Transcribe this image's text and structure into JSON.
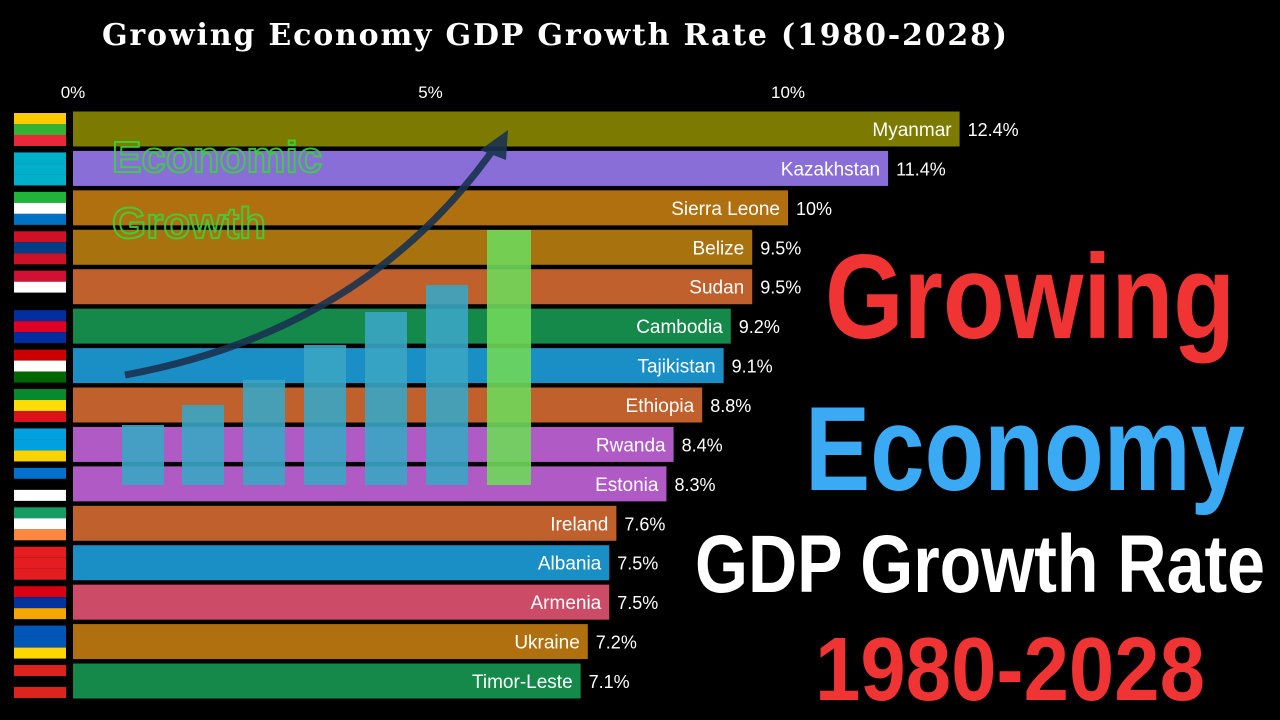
{
  "chart_data": {
    "type": "bar",
    "orientation": "horizontal",
    "title": "Growing Economy GDP Growth Rate (1980-2028)",
    "categories": [
      "Myanmar",
      "Kazakhstan",
      "Sierra Leone",
      "Belize",
      "Sudan",
      "Cambodia",
      "Tajikistan",
      "Ethiopia",
      "Rwanda",
      "Estonia",
      "Ireland",
      "Albania",
      "Armenia",
      "Ukraine",
      "Timor-Leste"
    ],
    "values": [
      12.4,
      11.4,
      10,
      9.5,
      9.5,
      9.2,
      9.1,
      8.8,
      8.4,
      8.3,
      7.6,
      7.5,
      7.5,
      7.2,
      7.1
    ],
    "value_labels": [
      "12.4%",
      "11.4%",
      "10%",
      "9.5%",
      "9.5%",
      "9.2%",
      "9.1%",
      "8.8%",
      "8.4%",
      "8.3%",
      "7.6%",
      "7.5%",
      "7.5%",
      "7.2%",
      "7.1%"
    ],
    "colors": [
      "#7d7a00",
      "#8a6ed8",
      "#b0700f",
      "#a8720e",
      "#c0602c",
      "#14894a",
      "#1a8fc6",
      "#c0602c",
      "#b05ac6",
      "#b05ac6",
      "#c0602c",
      "#1a8fc6",
      "#cc4c68",
      "#b0700f",
      "#14894a"
    ],
    "xlim": [
      0,
      12.4
    ],
    "xticks": [
      {
        "value": 0,
        "label": "0%"
      },
      {
        "value": 5,
        "label": "5%"
      },
      {
        "value": 10,
        "label": "10%"
      }
    ],
    "grid": false,
    "annotations": [
      "Economic",
      "Growth",
      "Growing",
      "Economy",
      "GDP Growth Rate",
      "1980-2028"
    ]
  }
}
